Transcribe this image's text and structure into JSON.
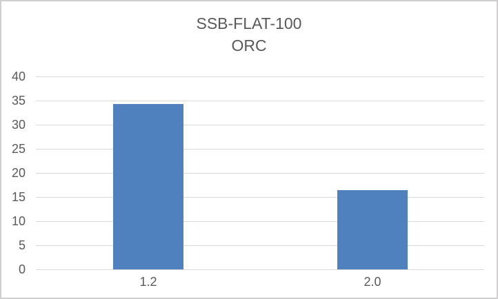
{
  "chart_data": {
    "type": "bar",
    "title": "SSB-FLAT-100",
    "subtitle": "ORC",
    "categories": [
      "1.2",
      "2.0"
    ],
    "values": [
      34.3,
      16.4
    ],
    "xlabel": "",
    "ylabel": "",
    "ylim": [
      0,
      40
    ],
    "ytick_step": 5,
    "ytick_labels": [
      "0",
      "5",
      "10",
      "15",
      "20",
      "25",
      "30",
      "35",
      "40"
    ],
    "grid": true,
    "legend": "none",
    "colors": {
      "bar": "#4E81BD",
      "gridline": "#D9D9D9",
      "axis_line": "#D9D9D9",
      "text": "#595959",
      "frame_border": "#D0CECE",
      "background": "#FFFFFF"
    }
  }
}
